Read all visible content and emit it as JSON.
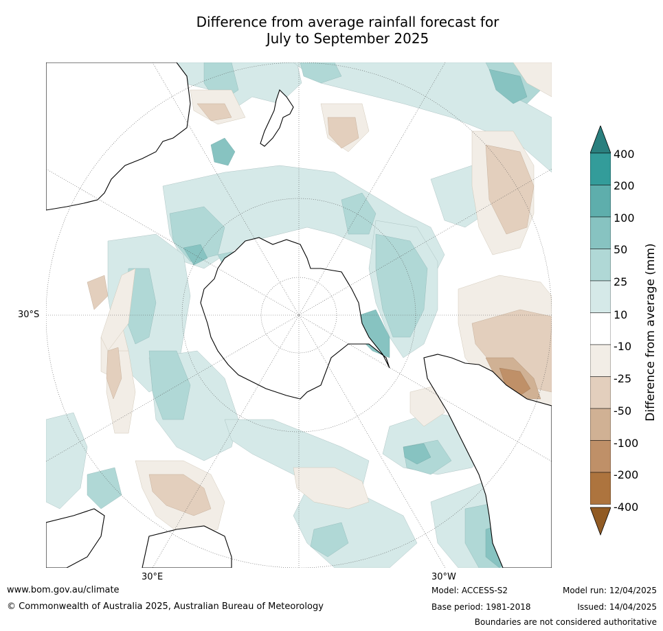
{
  "title": {
    "line1": "Difference from average rainfall forecast for",
    "line2": "July to September 2025"
  },
  "map": {
    "projection": "south polar stereographic",
    "lat_label": "30°S",
    "lon_labels": [
      "30°E",
      "30°W"
    ],
    "land_color": "#ffffff",
    "coast_color": "#000000"
  },
  "colorbar": {
    "title": "Difference from average (mm)",
    "ticks": [
      "400",
      "200",
      "100",
      "50",
      "25",
      "10",
      "-10",
      "-25",
      "-50",
      "-100",
      "-200",
      "-400"
    ],
    "colors": {
      "over": "#2a7f7e",
      "b200_400": "#339c9a",
      "b100_200": "#5eaeac",
      "b50_100": "#87c3c1",
      "b25_50": "#b0d8d6",
      "b10_25": "#d5e9e8",
      "bneutral": "#ffffff",
      "bm25_m10": "#f2ede6",
      "bm50_m25": "#e3cfbd",
      "bm100_m50": "#d0b194",
      "bm200_m100": "#bf9068",
      "bm400_m200": "#ad743e",
      "under": "#915b24"
    }
  },
  "footer": {
    "website": "www.bom.gov.au/climate",
    "copyright": "© Commonwealth of Australia 2025, Australian Bureau of Meteorology",
    "model": "Model: ACCESS-S2",
    "base_period": "Base period: 1981-2018",
    "model_run": "Model run: 12/04/2025",
    "issued": "Issued: 14/04/2025",
    "disclaimer": "Boundaries are not considered authoritative"
  }
}
